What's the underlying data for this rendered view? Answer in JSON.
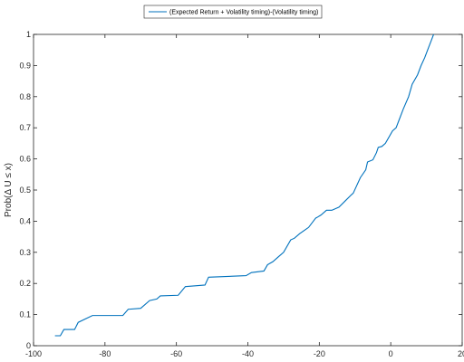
{
  "chart_data": {
    "type": "line",
    "title": "",
    "xlabel": "",
    "ylabel": "Prob(Δ U ≤ x)",
    "xlim": [
      -100,
      20
    ],
    "ylim": [
      0,
      1
    ],
    "xticks": [
      -100,
      -80,
      -60,
      -40,
      -20,
      0,
      20
    ],
    "yticks": [
      0,
      0.1,
      0.2,
      0.3,
      0.4,
      0.5,
      0.6,
      0.7,
      0.8,
      0.9,
      1
    ],
    "grid": false,
    "legend_position": "top-center",
    "series": [
      {
        "name": "(Expected Return + Volatility timing)-(Volatility timing)",
        "color": "#0072BD",
        "x": [
          -94.0,
          -92.5,
          -91.5,
          -88.5,
          -87.5,
          -83.5,
          -75.0,
          -73.5,
          -70.0,
          -67.5,
          -65.5,
          -64.5,
          -59.5,
          -57.5,
          -52.0,
          -51.0,
          -40.5,
          -39.0,
          -35.5,
          -34.5,
          -33.0,
          -31.5,
          -30.0,
          -28.0,
          -27.0,
          -25.5,
          -23.0,
          -21.0,
          -20.5,
          -19.5,
          -18.0,
          -16.5,
          -14.5,
          -11.0,
          -10.5,
          -8.5,
          -7.0,
          -6.5,
          -5.0,
          -4.0,
          -3.5,
          -2.5,
          -1.5,
          0.5,
          1.5,
          2.5,
          3.5,
          5.0,
          6.0,
          7.5,
          8.5,
          9.5,
          10.5,
          11.5,
          12.0
        ],
        "y": [
          0.032,
          0.032,
          0.052,
          0.052,
          0.075,
          0.097,
          0.097,
          0.117,
          0.12,
          0.145,
          0.15,
          0.16,
          0.162,
          0.19,
          0.195,
          0.22,
          0.225,
          0.235,
          0.24,
          0.26,
          0.27,
          0.285,
          0.3,
          0.34,
          0.345,
          0.36,
          0.38,
          0.41,
          0.413,
          0.42,
          0.435,
          0.435,
          0.445,
          0.485,
          0.49,
          0.54,
          0.565,
          0.59,
          0.597,
          0.62,
          0.637,
          0.64,
          0.65,
          0.69,
          0.7,
          0.73,
          0.76,
          0.8,
          0.84,
          0.87,
          0.9,
          0.925,
          0.955,
          0.985,
          1.0
        ]
      }
    ]
  }
}
